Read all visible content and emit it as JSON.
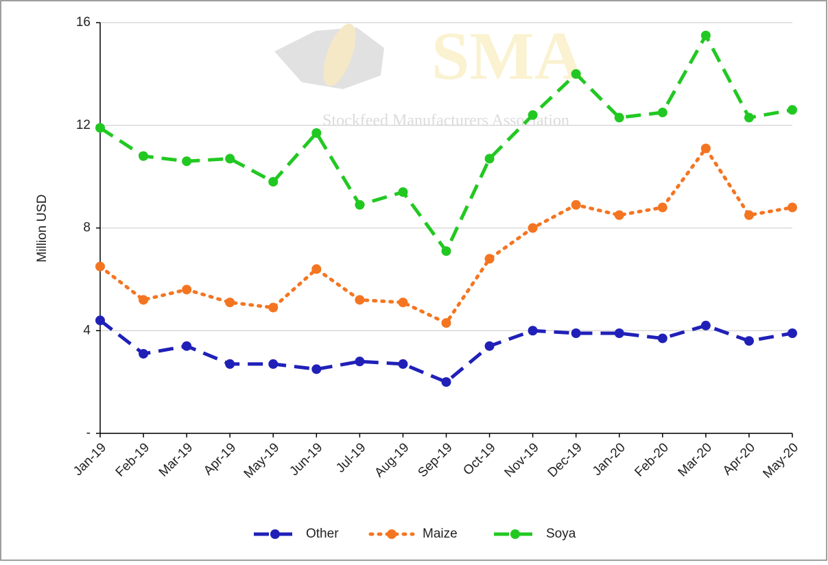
{
  "chart_data": {
    "type": "line",
    "watermark": {
      "logo": "SMA",
      "tagline": "Stockfeed Manufacturers Association"
    },
    "y_label": "Million USD",
    "categories": [
      "Jan-19",
      "Feb-19",
      "Mar-19",
      "Apr-19",
      "May-19",
      "Jun-19",
      "Jul-19",
      "Aug-19",
      "Sep-19",
      "Oct-19",
      "Nov-19",
      "Dec-19",
      "Jan-20",
      "Feb-20",
      "Mar-20",
      "Apr-20",
      "May-20"
    ],
    "series": [
      {
        "name": "Other",
        "color": "#2020b8",
        "line_style": "dashed",
        "values": [
          4.4,
          3.1,
          3.4,
          2.7,
          2.7,
          2.5,
          2.8,
          2.7,
          2.0,
          3.4,
          4.0,
          3.9,
          3.9,
          3.7,
          4.2,
          3.6,
          3.9
        ]
      },
      {
        "name": "Maize",
        "color": "#f47521",
        "line_style": "dotted",
        "values": [
          6.5,
          5.2,
          5.6,
          5.1,
          4.9,
          6.4,
          5.2,
          5.1,
          4.3,
          6.8,
          8.0,
          8.9,
          8.5,
          8.8,
          11.1,
          8.5,
          8.8
        ]
      },
      {
        "name": "Soya",
        "color": "#22c822",
        "line_style": "dashed",
        "values": [
          11.9,
          10.8,
          10.6,
          10.7,
          9.8,
          11.7,
          8.9,
          9.4,
          7.1,
          10.7,
          12.4,
          14.0,
          12.3,
          12.5,
          15.5,
          12.3,
          12.6
        ]
      }
    ],
    "ylim": [
      0,
      16
    ],
    "yticks": [
      {
        "value": 0,
        "label": "-"
      },
      4,
      8,
      12,
      16
    ],
    "grid": true,
    "legend": "bottom"
  }
}
